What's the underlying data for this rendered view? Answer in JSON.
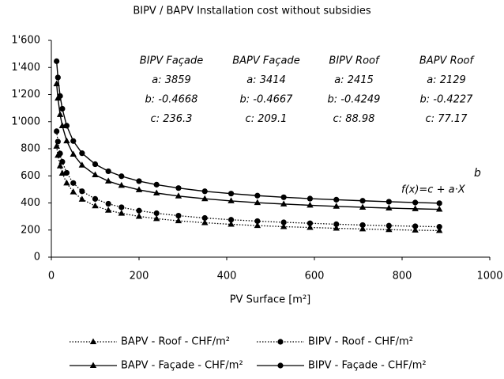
{
  "chart_data": {
    "type": "line",
    "title": "BIPV / BAPV Installation cost without subsidies",
    "x_label": "PV Surface [m²]",
    "x": [
      12,
      15,
      20,
      25,
      35,
      50,
      70,
      100,
      130,
      160,
      200,
      240,
      290,
      350,
      410,
      470,
      530,
      590,
      650,
      710,
      770,
      830,
      885
    ],
    "series": [
      {
        "name": "BAPV - Roof - CHF/m²",
        "color": "#000000",
        "line_style": "dotted",
        "marker": "triangle",
        "values": [
          818,
          751,
          673,
          619,
          547,
          481,
          427,
          378,
          346,
          323,
          301,
          284,
          268,
          254,
          242,
          233,
          225,
          219,
          213,
          208,
          203,
          199,
          196
        ]
      },
      {
        "name": "BIPV - Roof - CHF/m²",
        "color": "#000000",
        "line_style": "dotted",
        "marker": "circle",
        "values": [
          929,
          853,
          765,
          704,
          622,
          547,
          486,
          430,
          394,
          368,
          343,
          324,
          306,
          289,
          276,
          266,
          257,
          250,
          243,
          237,
          232,
          228,
          224
        ]
      },
      {
        "name": "BAPV - Façade - CHF/m²",
        "color": "#000000",
        "line_style": "solid",
        "marker": "triangle",
        "values": [
          1279,
          1173,
          1052,
          969,
          858,
          759,
          679,
          607,
          561,
          529,
          497,
          473,
          451,
          431,
          415,
          402,
          392,
          383,
          375,
          368,
          362,
          357,
          353
        ]
      },
      {
        "name": "BIPV - Façade - CHF/m²",
        "color": "#000000",
        "line_style": "solid",
        "marker": "circle",
        "values": [
          1446,
          1326,
          1189,
          1095,
          970,
          857,
          767,
          686,
          634,
          597,
          561,
          535,
          510,
          486,
          469,
          454,
          442,
          432,
          424,
          416,
          409,
          403,
          398
        ]
      }
    ],
    "xlim": [
      0,
      1000
    ],
    "xticks": [
      0,
      200,
      400,
      600,
      800,
      1000
    ],
    "ylim": [
      0,
      1600
    ],
    "yticks": [
      0,
      200,
      400,
      600,
      800,
      {
        "value": 1000,
        "label": "1'000"
      },
      {
        "value": 1200,
        "label": "1'200"
      },
      {
        "value": 1400,
        "label": "1'400"
      },
      {
        "value": 1600,
        "label": "1'600"
      }
    ],
    "grid": false,
    "legend": "bottom",
    "annotations": [
      {
        "name": "BIPV Façade",
        "a": "a: 3859",
        "b": "b: -0.4668",
        "c": "c: 236.3"
      },
      {
        "name": "BAPV Façade",
        "a": "a: 3414",
        "b": "b: -0.4667",
        "c": "c: 209.1"
      },
      {
        "name": "BIPV Roof",
        "a": "a: 2415",
        "b": "b: -0.4249",
        "c": "c: 88.98"
      },
      {
        "name": "BAPV Roof",
        "a": "a: 2129",
        "b": "b: -0.4227",
        "c": "c: 77.17"
      }
    ],
    "formula": {
      "base": "f(x)=c + a·X",
      "exponent": "b"
    }
  }
}
